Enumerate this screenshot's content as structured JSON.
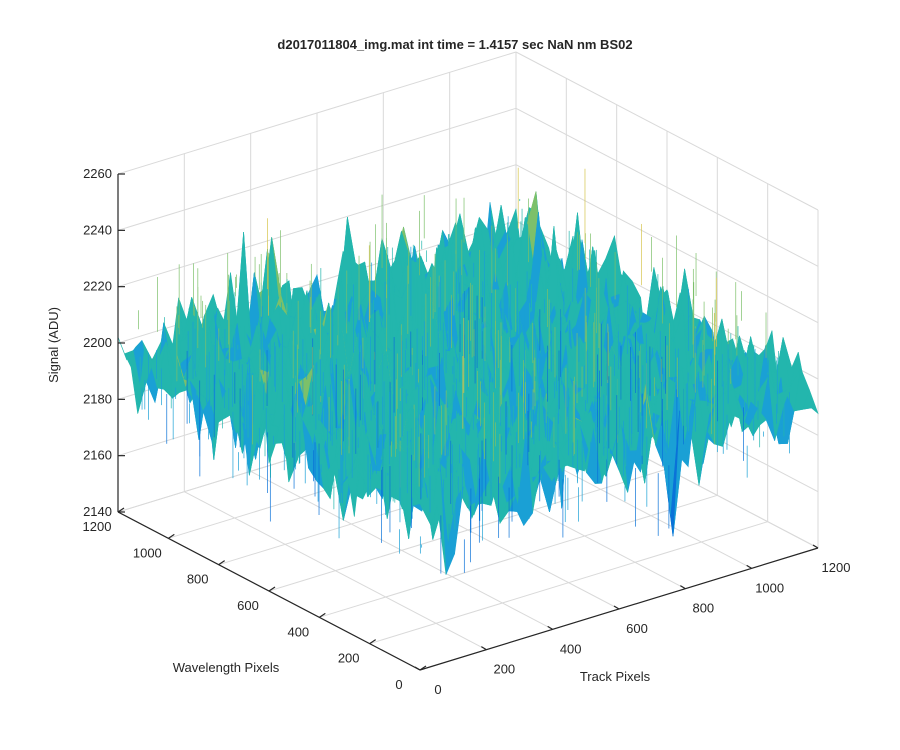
{
  "chart_data": {
    "type": "surface",
    "title": "d2017011804_img.mat int time = 1.4157 sec  NaN nm BS02",
    "xlabel": "Track Pixels",
    "ylabel": "Wavelength Pixels",
    "zlabel": "Signal (ADU)",
    "xlim": [
      0,
      1200
    ],
    "ylim": [
      0,
      1200
    ],
    "zlim": [
      2140,
      2260
    ],
    "xticks": [
      0,
      200,
      400,
      600,
      800,
      1000,
      1200
    ],
    "yticks": [
      0,
      200,
      400,
      600,
      800,
      1000,
      1200
    ],
    "zticks": [
      2140,
      2160,
      2180,
      2200,
      2220,
      2240,
      2260
    ],
    "surface": {
      "x_range": [
        0,
        1200
      ],
      "y_range": [
        0,
        1200
      ],
      "mean": 2195,
      "noise_min": 2150,
      "noise_max": 2250
    },
    "grid": true,
    "colormap": "parula",
    "colors": [
      "#0a72d8",
      "#1aa0d5",
      "#23b6ad",
      "#7cc06a",
      "#d5c44a"
    ]
  }
}
